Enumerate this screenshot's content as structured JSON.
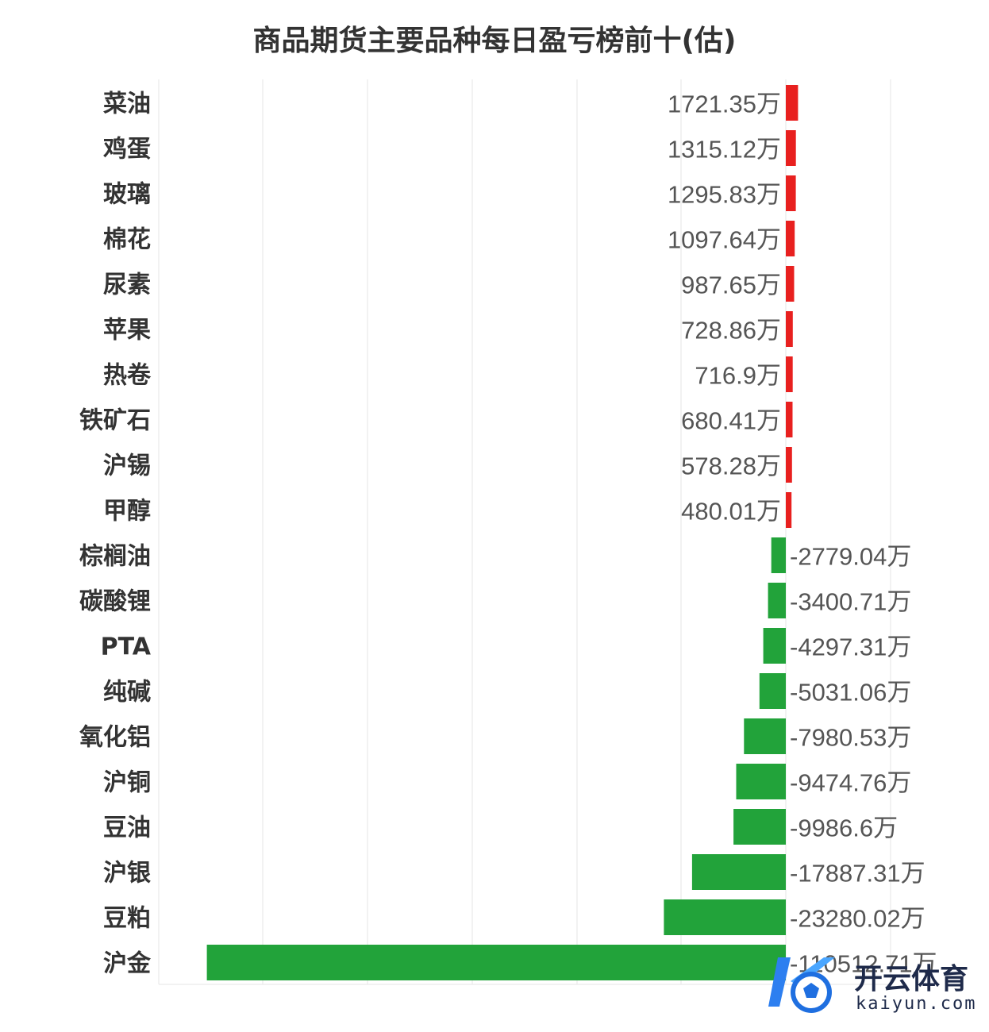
{
  "chart_data": {
    "type": "bar",
    "orientation": "horizontal",
    "title": "商品期货主要品种每日盈亏榜前十(估)",
    "unit": "万",
    "xlim": [
      -110512.71,
      1721.35
    ],
    "grid": true,
    "colors": {
      "positive": "#e8201f",
      "negative": "#22a33a"
    },
    "categories": [
      "菜油",
      "鸡蛋",
      "玻璃",
      "棉花",
      "尿素",
      "苹果",
      "热卷",
      "铁矿石",
      "沪锡",
      "甲醇",
      "棕榈油",
      "碳酸锂",
      "PTA",
      "纯碱",
      "氧化铝",
      "沪铜",
      "豆油",
      "沪银",
      "豆粕",
      "沪金"
    ],
    "values": [
      1721.35,
      1315.12,
      1295.83,
      1097.64,
      987.65,
      728.86,
      716.9,
      680.41,
      578.28,
      480.01,
      -2779.04,
      -3400.71,
      -4297.31,
      -5031.06,
      -7980.53,
      -9474.76,
      -9986.6,
      -17887.31,
      -23280.02,
      -110512.71
    ],
    "value_labels": [
      "1721.35万",
      "1315.12万",
      "1295.83万",
      "1097.64万",
      "987.65万",
      "728.86万",
      "716.9万",
      "680.41万",
      "578.28万",
      "480.01万",
      "-2779.04万",
      "-3400.71万",
      "-4297.31万",
      "-5031.06万",
      "-7980.53万",
      "-9474.76万",
      "-9986.6万",
      "-17887.31万",
      "-23280.02万",
      "-110512.71万"
    ]
  },
  "watermark": {
    "name_cn": "开云体育",
    "domain": "kaiyun.com"
  }
}
